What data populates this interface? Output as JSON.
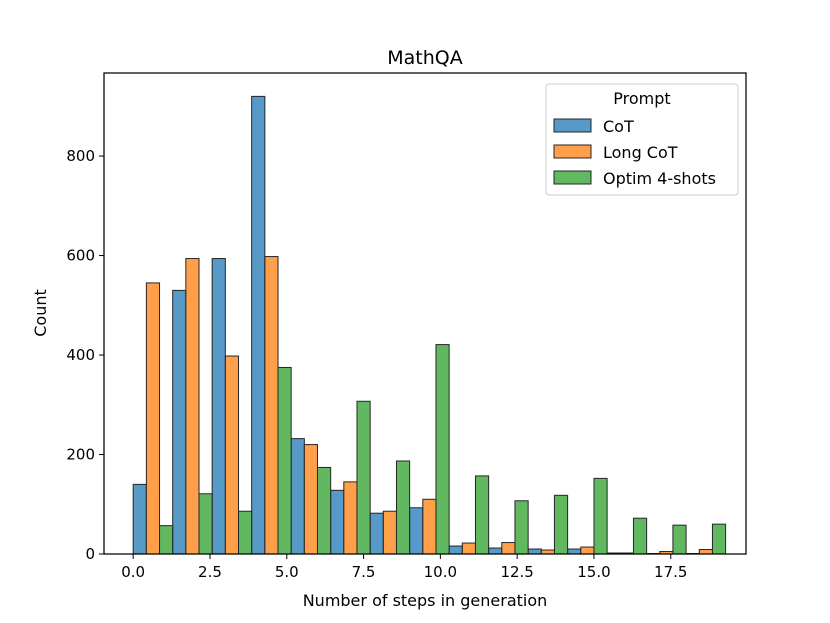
{
  "chart_data": {
    "type": "bar",
    "title": "MathQA",
    "xlabel": "Number of steps in generation",
    "ylabel": "Count",
    "xlim": [
      -0.95,
      19.95
    ],
    "ylim": [
      0,
      967
    ],
    "x_ticks": [
      0,
      2.5,
      5,
      7.5,
      10,
      12.5,
      15,
      17.5
    ],
    "x_tick_labels": [
      "0.0",
      "2.5",
      "5.0",
      "7.5",
      "10.0",
      "12.5",
      "15.0",
      "17.5"
    ],
    "y_ticks": [
      0,
      200,
      400,
      600,
      800
    ],
    "y_tick_labels": [
      "0",
      "200",
      "400",
      "600",
      "800"
    ],
    "bin_width": 0.429,
    "legend": {
      "title": "Prompt",
      "placement": "top-right"
    },
    "series": [
      {
        "name": "CoT",
        "color": "#1f77b4",
        "bins": [
          {
            "x": 0,
            "value": 140
          },
          {
            "x": 1.286,
            "value": 530
          },
          {
            "x": 2.571,
            "value": 594
          },
          {
            "x": 3.857,
            "value": 920
          },
          {
            "x": 5.143,
            "value": 232
          },
          {
            "x": 6.429,
            "value": 128
          },
          {
            "x": 7.714,
            "value": 82
          },
          {
            "x": 9.0,
            "value": 93
          },
          {
            "x": 10.286,
            "value": 16
          },
          {
            "x": 11.571,
            "value": 12
          },
          {
            "x": 12.857,
            "value": 10
          },
          {
            "x": 14.143,
            "value": 10
          },
          {
            "x": 15.429,
            "value": 2
          },
          {
            "x": 16.714,
            "value": 1
          },
          {
            "x": 18.0,
            "value": 1
          }
        ]
      },
      {
        "name": "Long CoT",
        "color": "#ff7f0e",
        "bins": [
          {
            "x": 0.429,
            "value": 545
          },
          {
            "x": 1.714,
            "value": 594
          },
          {
            "x": 3.0,
            "value": 398
          },
          {
            "x": 4.286,
            "value": 598
          },
          {
            "x": 5.571,
            "value": 220
          },
          {
            "x": 6.857,
            "value": 145
          },
          {
            "x": 8.143,
            "value": 86
          },
          {
            "x": 9.429,
            "value": 110
          },
          {
            "x": 10.714,
            "value": 22
          },
          {
            "x": 12.0,
            "value": 23
          },
          {
            "x": 13.286,
            "value": 8
          },
          {
            "x": 14.571,
            "value": 14
          },
          {
            "x": 15.857,
            "value": 2
          },
          {
            "x": 17.143,
            "value": 5
          },
          {
            "x": 18.429,
            "value": 9
          }
        ]
      },
      {
        "name": "Optim 4-shots",
        "color": "#2ca02c",
        "bins": [
          {
            "x": 0.857,
            "value": 57
          },
          {
            "x": 2.143,
            "value": 121
          },
          {
            "x": 3.429,
            "value": 86
          },
          {
            "x": 4.714,
            "value": 375
          },
          {
            "x": 6.0,
            "value": 174
          },
          {
            "x": 7.286,
            "value": 307
          },
          {
            "x": 8.571,
            "value": 187
          },
          {
            "x": 9.857,
            "value": 421
          },
          {
            "x": 11.143,
            "value": 157
          },
          {
            "x": 12.429,
            "value": 107
          },
          {
            "x": 13.714,
            "value": 118
          },
          {
            "x": 15.0,
            "value": 152
          },
          {
            "x": 16.286,
            "value": 72
          },
          {
            "x": 17.571,
            "value": 58
          },
          {
            "x": 18.857,
            "value": 60
          }
        ]
      }
    ]
  }
}
